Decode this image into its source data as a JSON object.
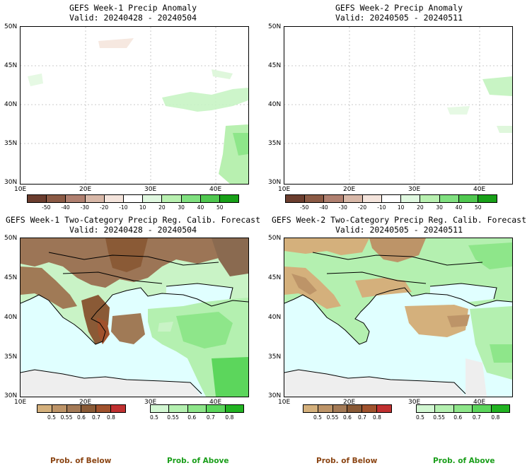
{
  "panels": [
    {
      "title": "GEFS Week-1 Precip Anomaly",
      "valid": "Valid: 20240428 - 20240504"
    },
    {
      "title": "GEFS Week-2 Precip Anomaly",
      "valid": "Valid: 20240505 - 20240511"
    },
    {
      "title": "GEFS Week-1 Two-Category Precip Reg. Calib. Forecast",
      "valid": "Valid: 20240428 - 20240504"
    },
    {
      "title": "GEFS Week-2 Two-Category Precip Reg. Calib. Forecast",
      "valid": "Valid: 20240505 - 20240511"
    }
  ],
  "axes": {
    "lat_labels": [
      "50N",
      "45N",
      "40N",
      "35N",
      "30N"
    ],
    "lon_labels": [
      "10E",
      "20E",
      "30E",
      "40E"
    ]
  },
  "anomaly_colorbar": {
    "ticks": [
      "-50",
      "-40",
      "-30",
      "-20",
      "-10",
      "10",
      "20",
      "30",
      "40",
      "50"
    ],
    "colors": [
      "#6b3d2e",
      "#8b5a45",
      "#b08070",
      "#d8b8a8",
      "#f4e4dc",
      "#ffffff",
      "#e0f8e0",
      "#b8f0b0",
      "#80e080",
      "#50c850",
      "#18a018"
    ]
  },
  "prob_colorbar": {
    "below_ticks": [
      "0.5",
      "0.55",
      "0.6",
      "0.7",
      "0.8"
    ],
    "above_ticks": [
      "0.5",
      "0.55",
      "0.6",
      "0.7",
      "0.8"
    ],
    "below_colors": [
      "#d4b07c",
      "#bd9468",
      "#a47a56",
      "#8a5a36",
      "#a0522d",
      "#c03030"
    ],
    "above_colors": [
      "#d2f7d2",
      "#b4f0b0",
      "#8ee68a",
      "#5cd65c",
      "#22b322"
    ],
    "below_label": "Prob. of Below",
    "above_label": "Prob. of Above",
    "below_label_color": "#8b4513",
    "above_label_color": "#1a9e1a"
  },
  "colors": {
    "sea": "#e0ffff",
    "land_none": "#eeeeee",
    "coast": "#000000"
  }
}
